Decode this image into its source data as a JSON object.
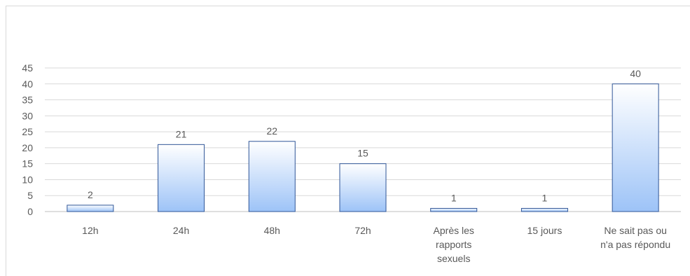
{
  "chart_data": {
    "type": "bar",
    "title": "",
    "xlabel": "",
    "ylabel": "",
    "categories": [
      [
        "12h"
      ],
      [
        "24h"
      ],
      [
        "48h"
      ],
      [
        "72h"
      ],
      [
        "Après les",
        "rapports",
        "sexuels"
      ],
      [
        "15 jours"
      ],
      [
        "Ne sait pas ou",
        "n'a pas répondu"
      ]
    ],
    "values": [
      2,
      21,
      22,
      15,
      1,
      1,
      40
    ],
    "ylim": [
      0,
      45
    ],
    "yticks": [
      0,
      5,
      10,
      15,
      20,
      25,
      30,
      35,
      40,
      45
    ],
    "grid": true,
    "legend": "none",
    "data_labels": true,
    "colors": {
      "bar_top": "#ffffff",
      "bar_bottom": "#9dc3f7",
      "bar_border": "#2f5597",
      "gridline": "#d9d9d9",
      "text": "#595959"
    }
  }
}
